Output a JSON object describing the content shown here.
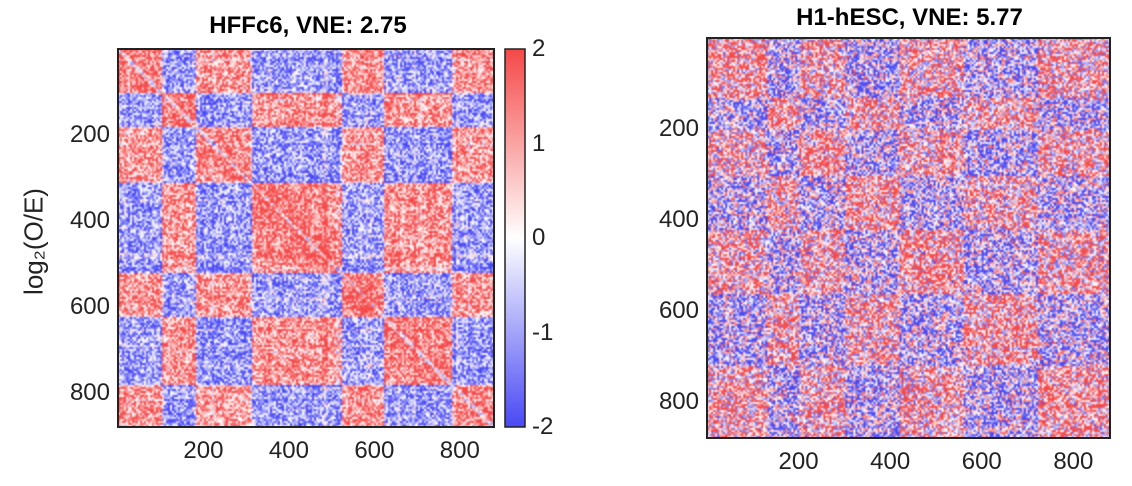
{
  "chart_data": [
    {
      "type": "heatmap",
      "title": "HFFc6, VNE: 2.75",
      "ylabel": "log₂(O/E)",
      "xticks": [
        200,
        400,
        600,
        800
      ],
      "yticks": [
        200,
        400,
        600,
        800
      ],
      "xlim": [
        1,
        880
      ],
      "ylim": [
        1,
        880
      ],
      "colorbar": {
        "ticks": [
          "2",
          "1",
          "0",
          "-1",
          "-2"
        ],
        "range": [
          -2,
          2
        ],
        "colors": {
          "low": "#4a4af5",
          "mid": "#ffffff",
          "high": "#f54a4a"
        }
      },
      "blocks": [
        [
          0,
          100
        ],
        [
          100,
          180
        ],
        [
          180,
          310
        ],
        [
          310,
          520
        ],
        [
          520,
          620
        ],
        [
          620,
          780
        ],
        [
          780,
          880
        ]
      ],
      "seed": 7,
      "contrast": 1.0
    },
    {
      "type": "heatmap",
      "title": "H1-hESC, VNE: 5.77",
      "xticks": [
        200,
        400,
        600,
        800
      ],
      "yticks": [
        200,
        400,
        600,
        800
      ],
      "xlim": [
        1,
        880
      ],
      "ylim": [
        1,
        880
      ],
      "blocks": [
        [
          0,
          130
        ],
        [
          130,
          200
        ],
        [
          200,
          300
        ],
        [
          300,
          420
        ],
        [
          420,
          560
        ],
        [
          560,
          720
        ],
        [
          720,
          880
        ]
      ],
      "seed": 19,
      "contrast": 0.55
    }
  ]
}
